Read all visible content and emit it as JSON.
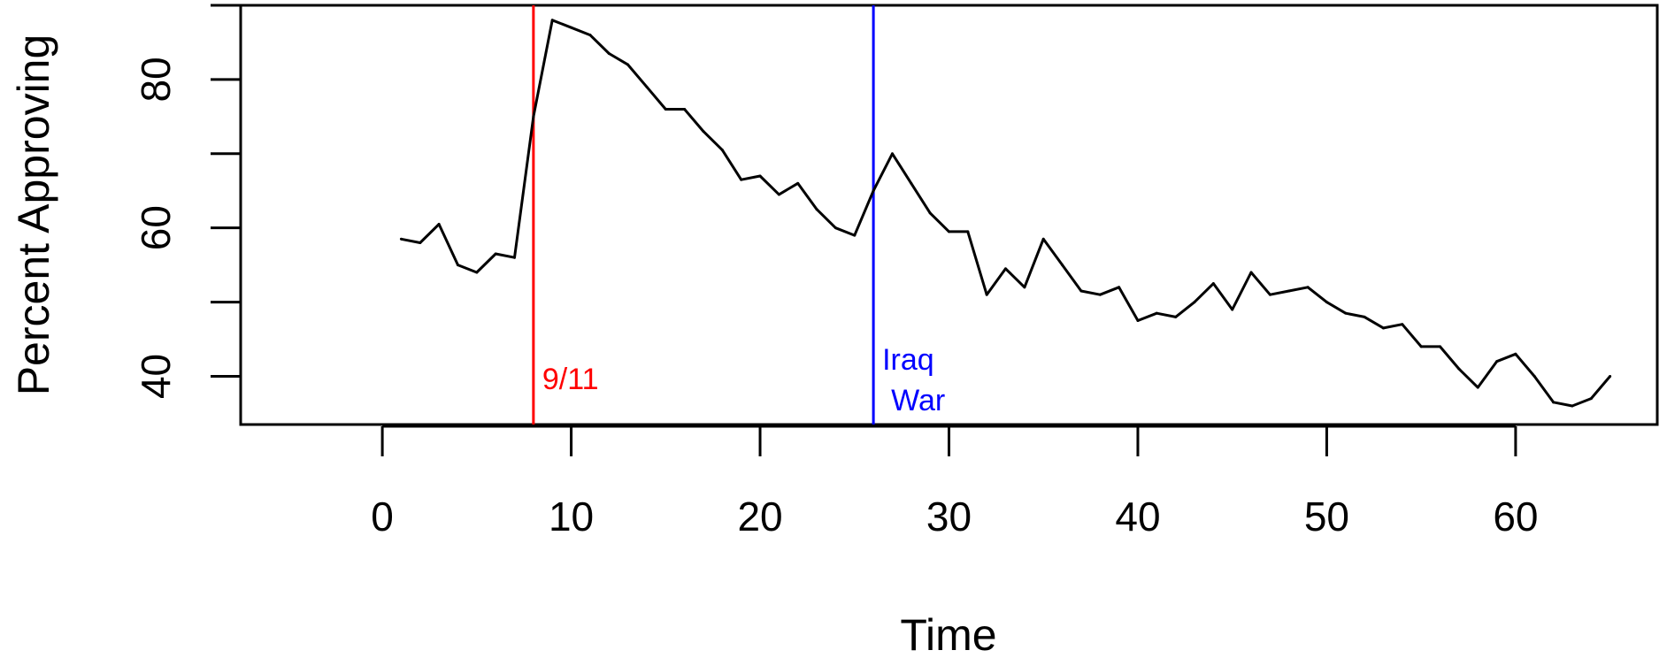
{
  "chart_data": {
    "type": "line",
    "xlabel": "Time",
    "ylabel": "Percent Approving",
    "xlim": [
      -7.5,
      67.5
    ],
    "ylim": [
      33.5,
      90
    ],
    "xticks": [
      0,
      10,
      20,
      30,
      40,
      50,
      60
    ],
    "yticks": [
      40,
      50,
      60,
      70,
      80,
      90
    ],
    "ytick_labels": [
      "40",
      "",
      "60",
      "",
      "80",
      ""
    ],
    "grid": false,
    "series": [
      {
        "color": "#000000",
        "x": [
          1,
          2,
          3,
          4,
          5,
          6,
          7,
          8,
          9,
          10,
          11,
          12,
          13,
          14,
          15,
          16,
          17,
          18,
          19,
          20,
          21,
          22,
          23,
          24,
          25,
          26,
          27,
          28,
          29,
          30,
          31,
          32,
          33,
          34,
          35,
          36,
          37,
          38,
          39,
          40,
          41,
          42,
          43,
          44,
          45,
          46,
          47,
          48,
          49,
          50,
          51,
          52,
          53,
          54,
          55,
          56,
          57,
          58,
          59,
          60,
          61,
          62,
          63,
          64,
          65
        ],
        "values": [
          58.5,
          58,
          60.5,
          55,
          54,
          56.5,
          56,
          75,
          88,
          87,
          86,
          83.5,
          82,
          79,
          76,
          76,
          73,
          70.5,
          66.5,
          67,
          64.5,
          66,
          62.5,
          60,
          59,
          65,
          70,
          66,
          62,
          59.5,
          59.5,
          51,
          54.5,
          52,
          58.5,
          55,
          51.5,
          51,
          52,
          47.5,
          48.5,
          48,
          50,
          52.5,
          49,
          54,
          51,
          51.5,
          52,
          50,
          48.5,
          48,
          46.5,
          47,
          44,
          44,
          41,
          38.5,
          42,
          43,
          40,
          36.5,
          36,
          37,
          40
        ]
      }
    ],
    "vlines": [
      {
        "x": 8,
        "color": "#ff0000",
        "label": "9/11"
      },
      {
        "x": 26,
        "color": "#0000ff",
        "label_lines": [
          "Iraq",
          "War"
        ]
      }
    ]
  }
}
